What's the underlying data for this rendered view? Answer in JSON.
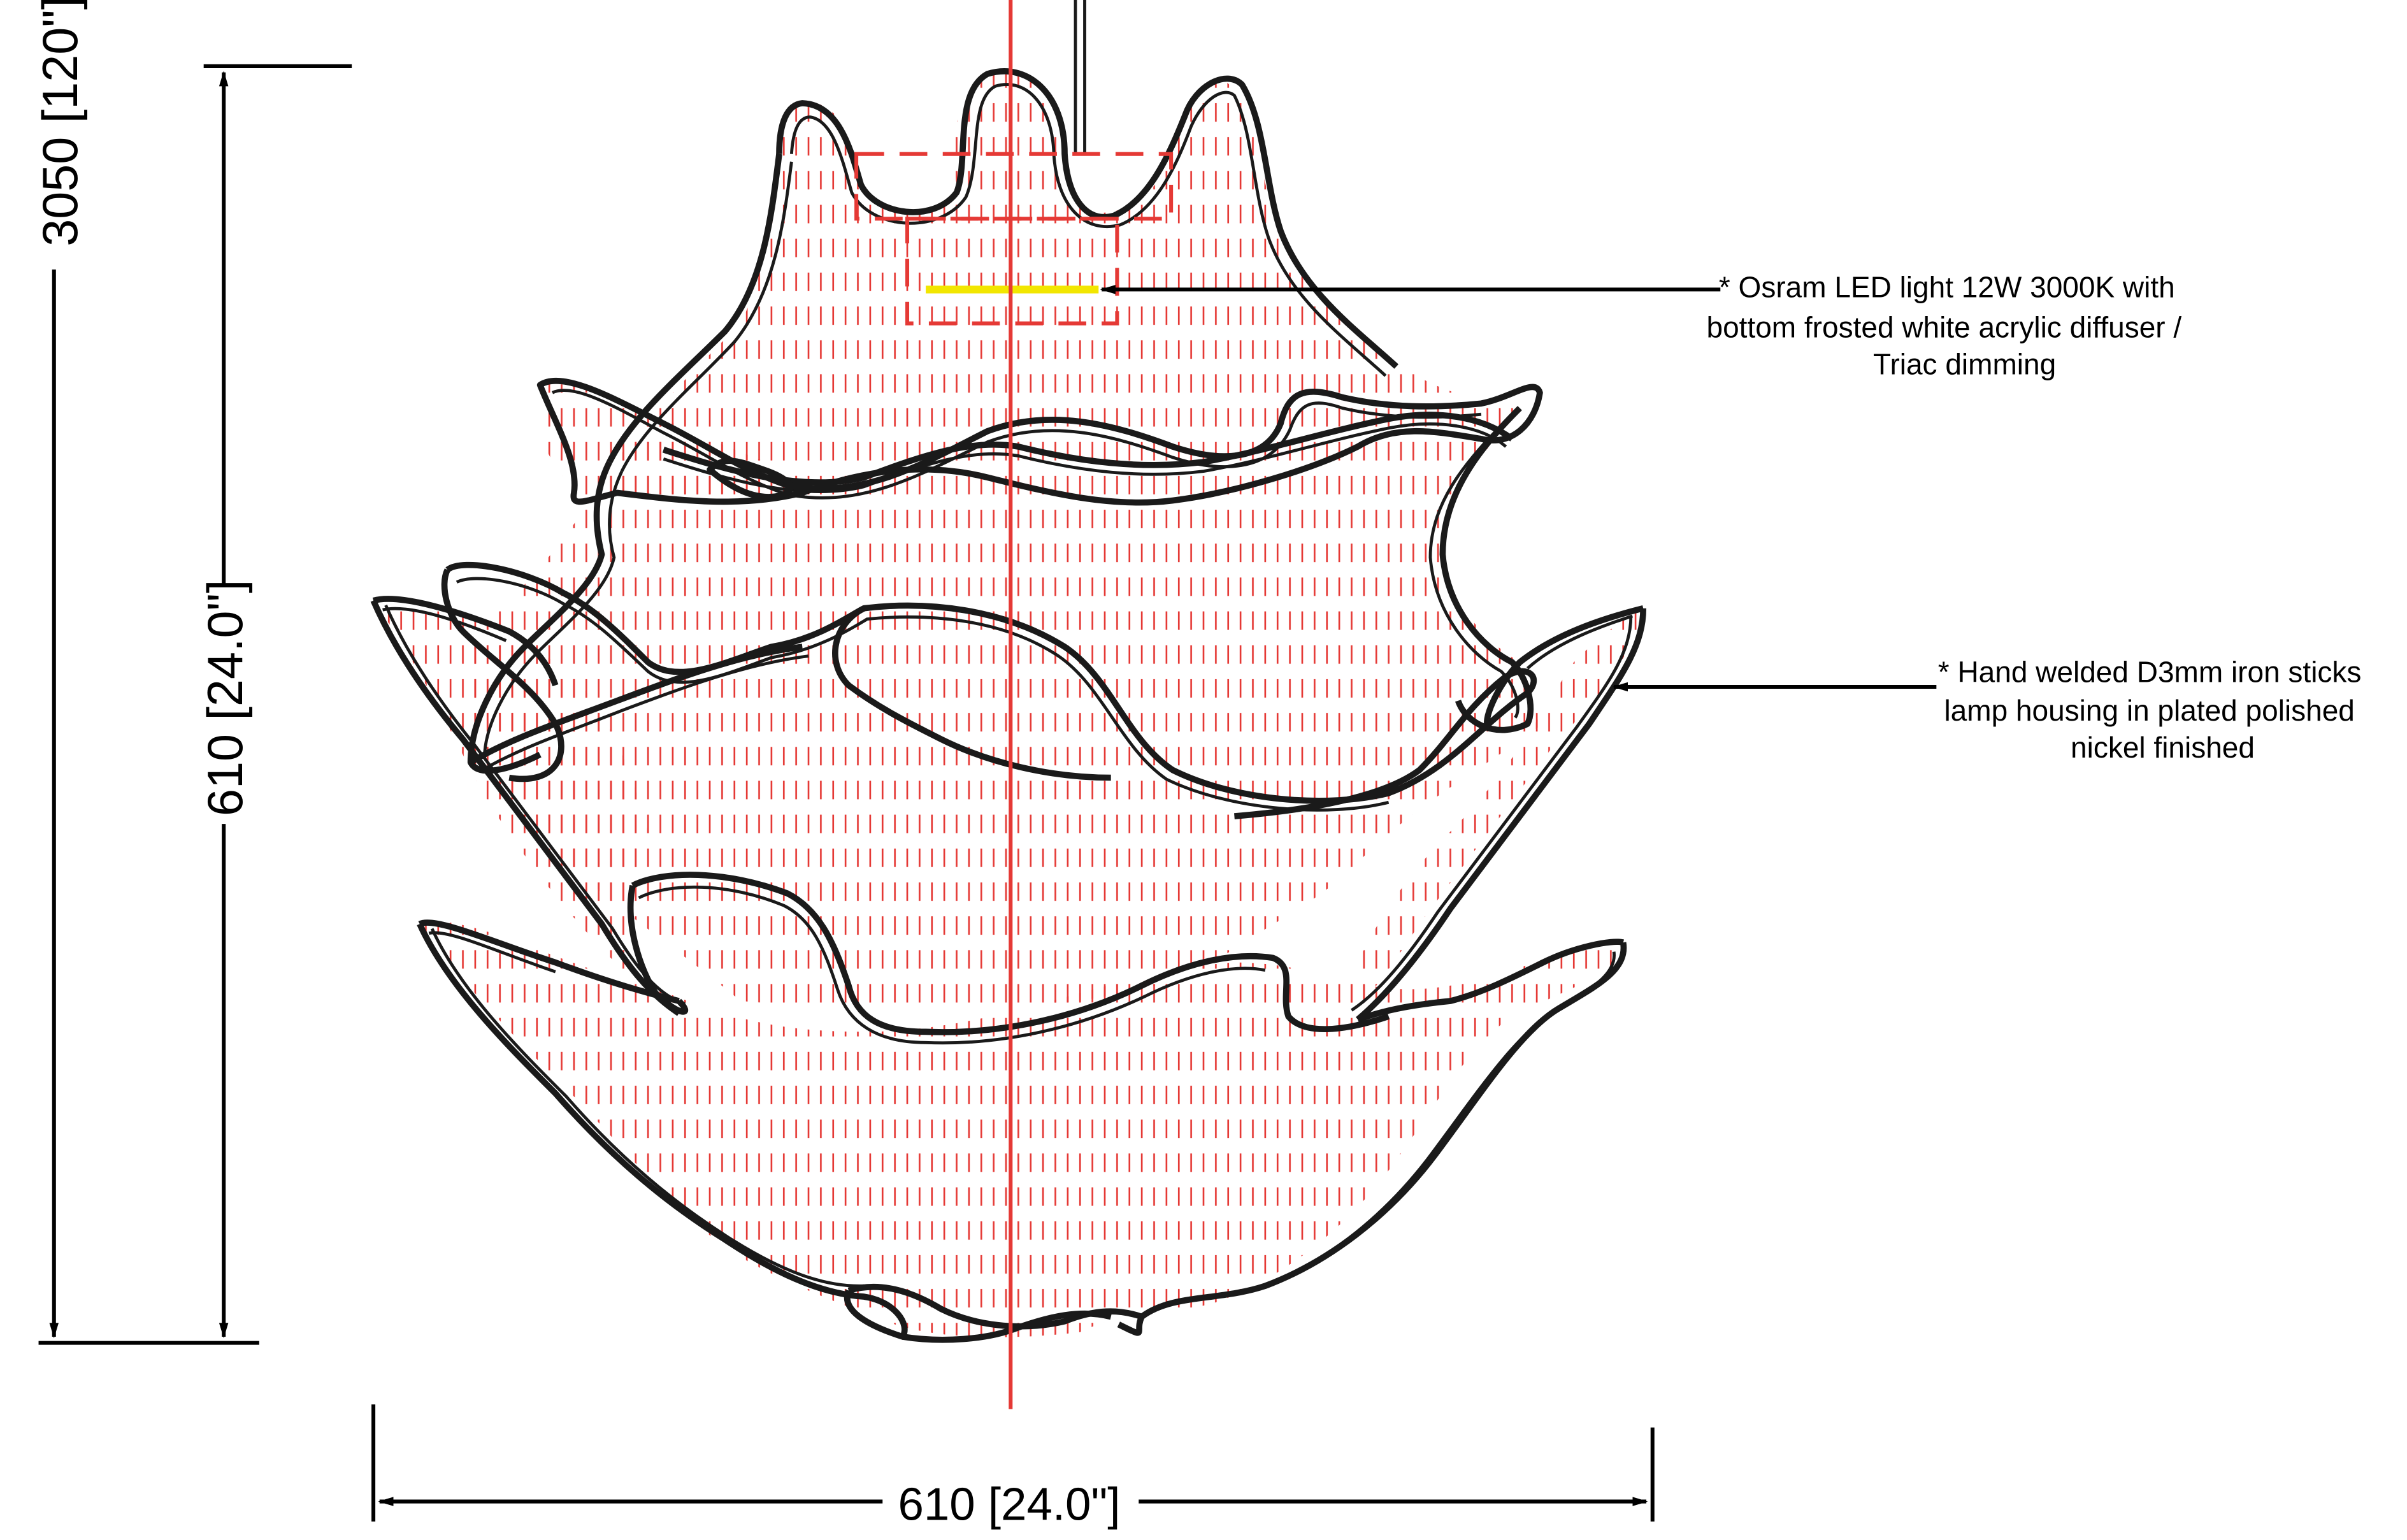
{
  "dimensions": {
    "total_height": "3050 [120\"]",
    "body_height": "610 [24.0\"]",
    "body_width": "610 [24.0\"]"
  },
  "notes": {
    "light_source": {
      "line1": "* Osram LED light 12W 3000K with",
      "line2": "bottom frosted white acrylic diffuser /",
      "line3": "Triac dimming"
    },
    "housing": {
      "line1": "* Hand welded D3mm iron sticks",
      "line2": "lamp housing in plated polished",
      "line3": "nickel finished"
    }
  },
  "colors": {
    "outline": "#1a1a1a",
    "hatch": "#e53935",
    "led": "#f2e600",
    "dimension": "#000000"
  }
}
